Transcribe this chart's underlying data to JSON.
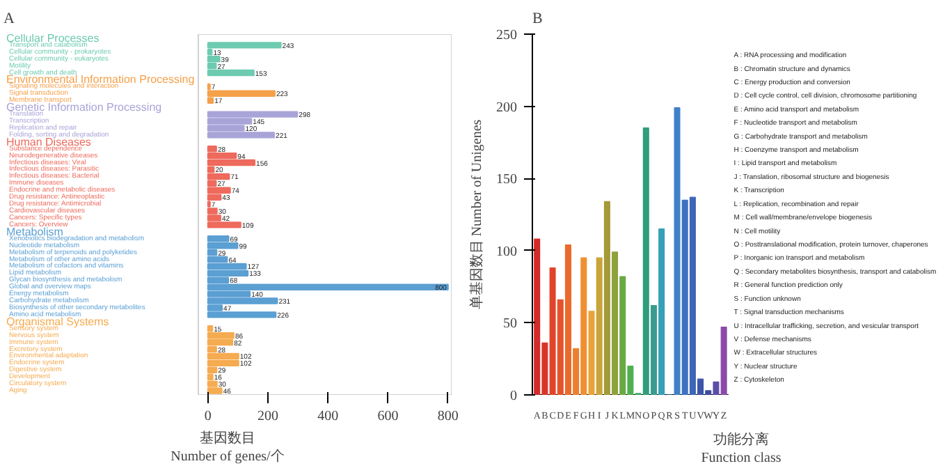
{
  "chart_data": [
    {
      "type": "bar",
      "orientation": "horizontal",
      "title": "A",
      "xlabel": "基因数目\nNumber of genes/个",
      "categories": [
        "Transport and catabolism",
        "Cellular community - prokaryotes",
        "Cellular community - eukaryotes",
        "Motility",
        "Cell growth and death",
        "Signaling molecules and interaction",
        "Signal transduction",
        "Membrane transport",
        "Translation",
        "Transcription",
        "Replication and repair",
        "Folding, sorting and degradation",
        "Substance dependence",
        "Neurodegenerative diseases",
        "Infectious diseases: Viral",
        "Infectious diseases: Parasitic",
        "Infectious diseases: Bacterial",
        "Immune diseases",
        "Endocrine and metabolic diseases",
        "Drug resistance: Antineoplastic",
        "Drug resistance: Antimicrobial",
        "Cardiovascular diseases",
        "Cancers: Specific types",
        "Cancers: Overview",
        "Xenobiotics biodegradation and metabolism",
        "Nucleotide metabolism",
        "Metabolism of terpenoids and polyketides",
        "Metabolism of other amino acids",
        "Metabolism of cofactors and vitamins",
        "Lipid metabolism",
        "Glycan biosynthesis and metabolism",
        "Global and overview maps",
        "Energy metabolism",
        "Carbohydrate metabolism",
        "Biosynthesis of other secondary metabolites",
        "Amino acid metabolism",
        "Sensory system",
        "Nervous system",
        "Immune system",
        "Excretory system",
        "Environmental adaptation",
        "Endocrine system",
        "Digestive system",
        "Development",
        "Circulatory system",
        "Aging"
      ],
      "series": [
        {
          "name": "Cellular Processes",
          "color": "#6ccbb0",
          "values": [
            243,
            13,
            39,
            27,
            153,
            null,
            null,
            null,
            null,
            null,
            null,
            null,
            null,
            null,
            null,
            null,
            null,
            null,
            null,
            null,
            null,
            null,
            null,
            null,
            null,
            null,
            null,
            null,
            null,
            null,
            null,
            null,
            null,
            null,
            null,
            null,
            null,
            null,
            null,
            null,
            null,
            null,
            null,
            null,
            null,
            null
          ]
        },
        {
          "name": "Environmental Information Processing",
          "color": "#f5a04a",
          "values": [
            null,
            null,
            null,
            null,
            null,
            7,
            223,
            17,
            null,
            null,
            null,
            null,
            null,
            null,
            null,
            null,
            null,
            null,
            null,
            null,
            null,
            null,
            null,
            null,
            null,
            null,
            null,
            null,
            null,
            null,
            null,
            null,
            null,
            null,
            null,
            null,
            null,
            null,
            null,
            null,
            null,
            null,
            null,
            null,
            null,
            null
          ]
        },
        {
          "name": "Genetic Information Processing",
          "color": "#a9a4d8",
          "values": [
            null,
            null,
            null,
            null,
            null,
            null,
            null,
            null,
            298,
            145,
            120,
            221,
            null,
            null,
            null,
            null,
            null,
            null,
            null,
            null,
            null,
            null,
            null,
            null,
            null,
            null,
            null,
            null,
            null,
            null,
            null,
            null,
            null,
            null,
            null,
            null,
            null,
            null,
            null,
            null,
            null,
            null,
            null,
            null,
            null,
            null
          ]
        },
        {
          "name": "Human Diseases",
          "color": "#ee6a5c",
          "values": [
            null,
            null,
            null,
            null,
            null,
            null,
            null,
            null,
            null,
            null,
            null,
            null,
            28,
            94,
            156,
            20,
            71,
            27,
            74,
            43,
            7,
            30,
            42,
            109,
            null,
            null,
            null,
            null,
            null,
            null,
            null,
            null,
            null,
            null,
            null,
            null,
            null,
            null,
            null,
            null,
            null,
            null,
            null,
            null,
            null,
            null
          ]
        },
        {
          "name": "Metabolism",
          "color": "#5b9fd3",
          "values": [
            null,
            null,
            null,
            null,
            null,
            null,
            null,
            null,
            null,
            null,
            null,
            null,
            null,
            null,
            null,
            null,
            null,
            null,
            null,
            null,
            null,
            null,
            null,
            null,
            69,
            99,
            29,
            64,
            127,
            133,
            68,
            800,
            140,
            231,
            47,
            226,
            null,
            null,
            null,
            null,
            null,
            null,
            null,
            null,
            null,
            null
          ]
        },
        {
          "name": "Organismal Systems",
          "color": "#f5ab50",
          "values": [
            null,
            null,
            null,
            null,
            null,
            null,
            null,
            null,
            null,
            null,
            null,
            null,
            null,
            null,
            null,
            null,
            null,
            null,
            null,
            null,
            null,
            null,
            null,
            null,
            null,
            null,
            null,
            null,
            null,
            null,
            null,
            null,
            null,
            null,
            null,
            null,
            15,
            86,
            82,
            28,
            102,
            102,
            29,
            16,
            30,
            46
          ]
        }
      ],
      "xlim": [
        -32,
        812
      ],
      "xticks": [
        0,
        200,
        400,
        600,
        800
      ],
      "data_labels": true
    },
    {
      "type": "bar",
      "title": "B",
      "xlabel": "功能分离\nFunction class",
      "ylabel": "单基因数目 Number of Unigenes",
      "categories": [
        "A",
        "B",
        "C",
        "D",
        "E",
        "F",
        "G",
        "H",
        "I",
        "J",
        "K",
        "L",
        "M",
        "N",
        "O",
        "P",
        "Q",
        "R",
        "S",
        "T",
        "U",
        "V",
        "W",
        "Y",
        "Z"
      ],
      "values": [
        108,
        36,
        88,
        66,
        104,
        32,
        95,
        58,
        95,
        134,
        99,
        82,
        20,
        1,
        185,
        62,
        115,
        0,
        199,
        135,
        137,
        11,
        3,
        9,
        47
      ],
      "colors": [
        "#d42a2a",
        "#d8352a",
        "#e0442a",
        "#e4542c",
        "#ea6a2c",
        "#ee7f2e",
        "#f08f30",
        "#e9a23a",
        "#c9a43a",
        "#a49a38",
        "#8ea23c",
        "#6aaa44",
        "#4fb04f",
        "#3aa86a",
        "#2f9e7c",
        "#3a9c8e",
        "#35a0b8",
        "#3a90c8",
        "#3f80c8",
        "#3d72c0",
        "#3d66b8",
        "#3d55a8",
        "#3d4aa0",
        "#5a4ea8",
        "#8a4aa8"
      ],
      "ylim": [
        0,
        250
      ],
      "yticks": [
        0,
        50,
        100,
        150,
        200,
        250
      ],
      "annotations": [
        "A : RNA processing and modification",
        "B : Chromatin structure and dynamics",
        "C : Energy production and conversion",
        "D : Cell cycle control, cell division, chromosome partitioning",
        "E : Amino acid transport and metabolism",
        "F : Nucleotide transport and metabolism",
        "G : Carbohydrate transport and metabolism",
        "H : Coenzyme transport and metabolism",
        "I : Lipid transport and metabolism",
        "J : Translation, ribosomal structure and biogenesis",
        "K : Transcription",
        "L : Replication, recombination and repair",
        "M : Cell wall/membrane/envelope biogenesis",
        "N : Cell motility",
        "O : Posttranslational modification, protein turnover, chaperones",
        "P : Inorganic ion transport and metabolism",
        "Q : Secondary metabolites biosynthesis, transport and catabolism",
        "R : General function prediction only",
        "S : Function unknown",
        "T : Signal transduction mechanisms",
        "U : Intracellular trafficking, secretion, and vesicular transport",
        "V : Defense mechanisms",
        "W : Extracellular structures",
        "Y : Nuclear structure",
        "Z : Cytoskeleton"
      ]
    }
  ]
}
